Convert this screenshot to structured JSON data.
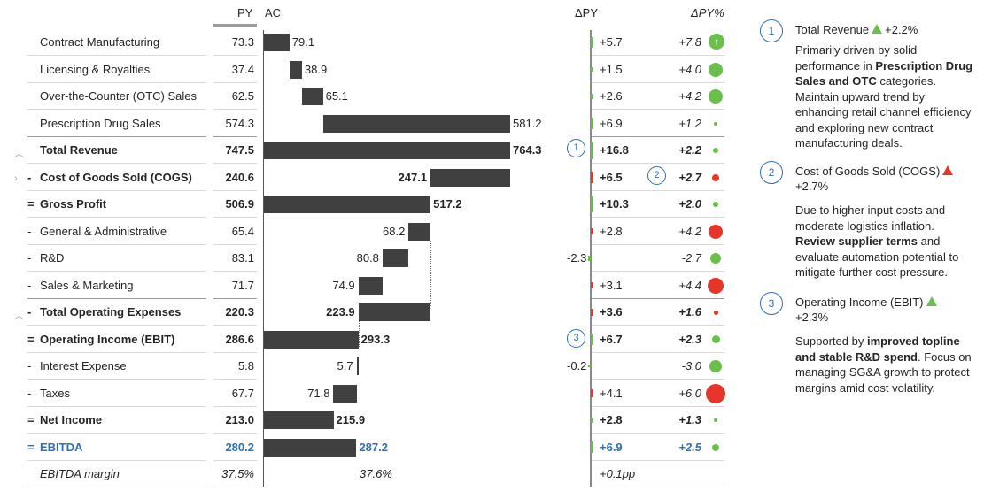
{
  "headers": {
    "py": "PY",
    "ac": "AC",
    "dpy": "ΔPY",
    "dpy_pct": "ΔPY%"
  },
  "rows": [
    {
      "sign": "",
      "label": "Contract Manufacturing",
      "py": "73.3",
      "ac": "79.1",
      "dpy": "+5.7",
      "pct": "+7.8"
    },
    {
      "sign": "",
      "label": "Licensing & Royalties",
      "py": "37.4",
      "ac": "38.9",
      "dpy": "+1.5",
      "pct": "+4.0"
    },
    {
      "sign": "",
      "label": "Over-the-Counter (OTC) Sales",
      "py": "62.5",
      "ac": "65.1",
      "dpy": "+2.6",
      "pct": "+4.2"
    },
    {
      "sign": "",
      "label": "Prescription Drug Sales",
      "py": "574.3",
      "ac": "581.2",
      "dpy": "+6.9",
      "pct": "+1.2"
    },
    {
      "sign": "",
      "label": "Total Revenue",
      "py": "747.5",
      "ac": "764.3",
      "dpy": "+16.8",
      "pct": "+2.2"
    },
    {
      "sign": "-",
      "label": "Cost of Goods Sold (COGS)",
      "py": "240.6",
      "ac": "247.1",
      "dpy": "+6.5",
      "pct": "+2.7"
    },
    {
      "sign": "=",
      "label": "Gross Profit",
      "py": "506.9",
      "ac": "517.2",
      "dpy": "+10.3",
      "pct": "+2.0"
    },
    {
      "sign": "-",
      "label": "General & Administrative",
      "py": "65.4",
      "ac": "68.2",
      "dpy": "+2.8",
      "pct": "+4.2"
    },
    {
      "sign": "-",
      "label": "R&D",
      "py": "83.1",
      "ac": "80.8",
      "dpy": "-2.3",
      "pct": "-2.7"
    },
    {
      "sign": "-",
      "label": "Sales & Marketing",
      "py": "71.7",
      "ac": "74.9",
      "dpy": "+3.1",
      "pct": "+4.4"
    },
    {
      "sign": "-",
      "label": "Total Operating Expenses",
      "py": "220.3",
      "ac": "223.9",
      "dpy": "+3.6",
      "pct": "+1.6"
    },
    {
      "sign": "=",
      "label": "Operating Income (EBIT)",
      "py": "286.6",
      "ac": "293.3",
      "dpy": "+6.7",
      "pct": "+2.3"
    },
    {
      "sign": "-",
      "label": "Interest Expense",
      "py": "5.8",
      "ac": "5.7",
      "dpy": "-0.2",
      "pct": "-3.0"
    },
    {
      "sign": "-",
      "label": "Taxes",
      "py": "67.7",
      "ac": "71.8",
      "dpy": "+4.1",
      "pct": "+6.0"
    },
    {
      "sign": "=",
      "label": "Net Income",
      "py": "213.0",
      "ac": "215.9",
      "dpy": "+2.8",
      "pct": "+1.3"
    },
    {
      "sign": "=",
      "label": "EBITDA",
      "py": "280.2",
      "ac": "287.2",
      "dpy": "+6.9",
      "pct": "+2.5"
    },
    {
      "sign": "",
      "label": "EBITDA margin",
      "py": "37.5%",
      "ac": "37.6%",
      "dpy": "+0.1pp",
      "pct": ""
    }
  ],
  "markers": {
    "m1": "1",
    "m2": "2",
    "m3": "3"
  },
  "colors": {
    "positive": "#6abf4b",
    "negative": "#e8352a",
    "bar": "#404040",
    "highlight": "#2f6fb0"
  },
  "notes": [
    {
      "num": "1",
      "title": "Total Revenue",
      "delta": "+2.2%",
      "b1": "Primarily driven by solid performance in ",
      "b2": "Prescription Drug Sales and OTC",
      "b3": " categories. Maintain upward trend by enhancing retail channel efficiency and exploring new contract manufacturing deals."
    },
    {
      "num": "2",
      "title": "Cost of Goods Sold (COGS)",
      "delta": "+2.7%",
      "b1": "Due to higher input costs and moderate logistics inflation. ",
      "b2": "Review supplier terms",
      "b3": " and evaluate automation potential to mitigate further cost pressure."
    },
    {
      "num": "3",
      "title": "Operating Income (EBIT)",
      "delta": "+2.3%",
      "b1": "Supported by ",
      "b2": "improved topline and stable R&D spend",
      "b3": ". Focus on managing SG&A growth to protect margins amid cost volatility."
    }
  ]
}
